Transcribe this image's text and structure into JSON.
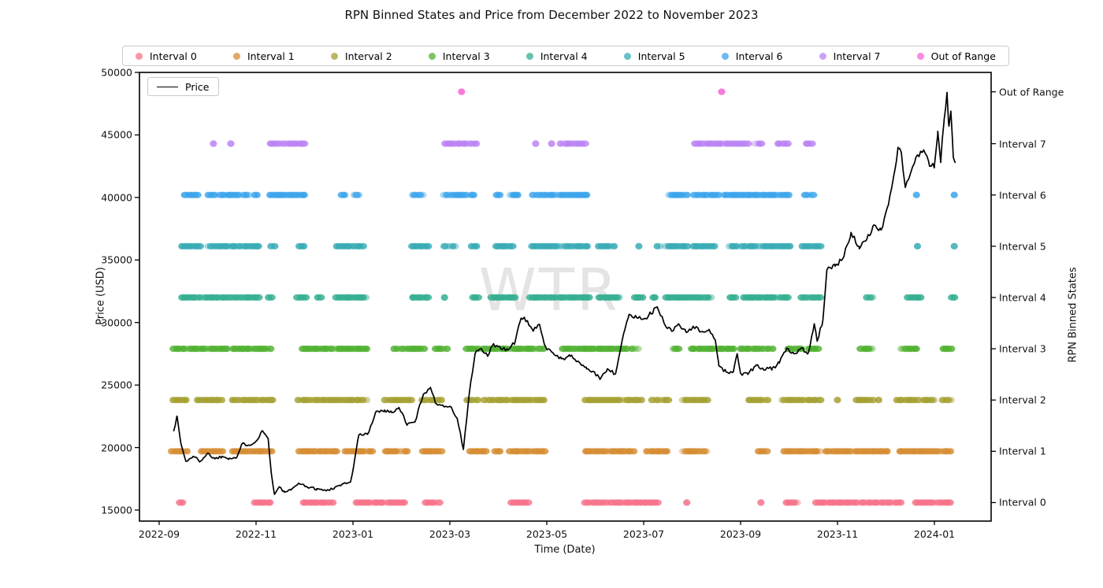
{
  "chart_data": {
    "type": "scatter",
    "title": "RPN Binned States and Price from December 2022 to November 2023",
    "xlabel": "Time (Date)",
    "ylabel_left": "Price (USD)",
    "ylabel_right": "RPN Binned States",
    "watermark": "WTR",
    "legend_position": "top",
    "grid": false,
    "x_unit": "months since 2022-09-01",
    "x_range": [
      -0.41,
      17.17
    ],
    "y_left_range": [
      14119,
      50000
    ],
    "x_ticks": [
      {
        "m": 0,
        "label": "2022-09"
      },
      {
        "m": 2,
        "label": "2022-11"
      },
      {
        "m": 4,
        "label": "2023-01"
      },
      {
        "m": 6,
        "label": "2023-03"
      },
      {
        "m": 8,
        "label": "2023-05"
      },
      {
        "m": 10,
        "label": "2023-07"
      },
      {
        "m": 12,
        "label": "2023-09"
      },
      {
        "m": 14,
        "label": "2023-11"
      },
      {
        "m": 16,
        "label": "2024-01"
      }
    ],
    "y_ticks": [
      {
        "value": 15000,
        "label": "15000"
      },
      {
        "value": 20000,
        "label": "20000"
      },
      {
        "value": 25000,
        "label": "25000"
      },
      {
        "value": 30000,
        "label": "30000"
      },
      {
        "value": 35000,
        "label": "35000"
      },
      {
        "value": 40000,
        "label": "40000"
      },
      {
        "value": 45000,
        "label": "45000"
      },
      {
        "value": 50000,
        "label": "50000"
      }
    ],
    "price_series": {
      "name": "Price",
      "color": "#000000",
      "jitter": 0.006,
      "points": [
        [
          0.3,
          21300
        ],
        [
          0.37,
          22500
        ],
        [
          0.45,
          20300
        ],
        [
          0.55,
          18900
        ],
        [
          0.7,
          19300
        ],
        [
          0.85,
          18900
        ],
        [
          1.0,
          19550
        ],
        [
          1.15,
          19100
        ],
        [
          1.3,
          19300
        ],
        [
          1.45,
          19150
        ],
        [
          1.6,
          19200
        ],
        [
          1.72,
          20350
        ],
        [
          1.85,
          20200
        ],
        [
          2.0,
          20500
        ],
        [
          2.13,
          21350
        ],
        [
          2.25,
          20700
        ],
        [
          2.32,
          17800
        ],
        [
          2.38,
          16250
        ],
        [
          2.48,
          16850
        ],
        [
          2.58,
          16450
        ],
        [
          2.72,
          16600
        ],
        [
          2.88,
          17150
        ],
        [
          3.05,
          16850
        ],
        [
          3.25,
          16700
        ],
        [
          3.45,
          16550
        ],
        [
          3.62,
          16800
        ],
        [
          3.8,
          17100
        ],
        [
          3.95,
          17250
        ],
        [
          4.03,
          18900
        ],
        [
          4.12,
          21000
        ],
        [
          4.3,
          21050
        ],
        [
          4.48,
          22900
        ],
        [
          4.65,
          23000
        ],
        [
          4.8,
          22800
        ],
        [
          4.95,
          23200
        ],
        [
          5.12,
          21850
        ],
        [
          5.28,
          22050
        ],
        [
          5.45,
          24250
        ],
        [
          5.6,
          24800
        ],
        [
          5.72,
          23500
        ],
        [
          5.85,
          23400
        ],
        [
          6.0,
          23300
        ],
        [
          6.15,
          22350
        ],
        [
          6.28,
          19850
        ],
        [
          6.4,
          24300
        ],
        [
          6.52,
          27500
        ],
        [
          6.65,
          27900
        ],
        [
          6.78,
          27300
        ],
        [
          6.9,
          28300
        ],
        [
          7.05,
          27900
        ],
        [
          7.2,
          27800
        ],
        [
          7.35,
          28500
        ],
        [
          7.47,
          30350
        ],
        [
          7.6,
          30150
        ],
        [
          7.72,
          29300
        ],
        [
          7.85,
          29850
        ],
        [
          7.97,
          28100
        ],
        [
          8.12,
          27600
        ],
        [
          8.3,
          27100
        ],
        [
          8.48,
          27300
        ],
        [
          8.65,
          26900
        ],
        [
          8.82,
          26300
        ],
        [
          8.95,
          26100
        ],
        [
          9.1,
          25450
        ],
        [
          9.25,
          26300
        ],
        [
          9.42,
          25900
        ],
        [
          9.55,
          28450
        ],
        [
          9.7,
          30650
        ],
        [
          9.85,
          30400
        ],
        [
          10.0,
          30300
        ],
        [
          10.15,
          30700
        ],
        [
          10.28,
          31250
        ],
        [
          10.42,
          29950
        ],
        [
          10.58,
          29300
        ],
        [
          10.72,
          29900
        ],
        [
          10.88,
          29200
        ],
        [
          11.02,
          29700
        ],
        [
          11.18,
          29250
        ],
        [
          11.35,
          29450
        ],
        [
          11.48,
          28600
        ],
        [
          11.55,
          26550
        ],
        [
          11.7,
          26050
        ],
        [
          11.85,
          26050
        ],
        [
          11.93,
          27500
        ],
        [
          12.0,
          25950
        ],
        [
          12.15,
          25850
        ],
        [
          12.32,
          26600
        ],
        [
          12.48,
          26200
        ],
        [
          12.65,
          26350
        ],
        [
          12.8,
          26750
        ],
        [
          12.95,
          27950
        ],
        [
          13.1,
          27500
        ],
        [
          13.25,
          27950
        ],
        [
          13.4,
          27600
        ],
        [
          13.52,
          29900
        ],
        [
          13.58,
          28500
        ],
        [
          13.7,
          30200
        ],
        [
          13.78,
          34200
        ],
        [
          13.95,
          34500
        ],
        [
          14.1,
          35050
        ],
        [
          14.28,
          37200
        ],
        [
          14.45,
          35900
        ],
        [
          14.6,
          36600
        ],
        [
          14.75,
          37800
        ],
        [
          14.9,
          37400
        ],
        [
          15.05,
          39400
        ],
        [
          15.15,
          41500
        ],
        [
          15.25,
          43900
        ],
        [
          15.32,
          43500
        ],
        [
          15.4,
          40800
        ],
        [
          15.52,
          42100
        ],
        [
          15.65,
          43400
        ],
        [
          15.78,
          43800
        ],
        [
          15.9,
          42500
        ],
        [
          16.0,
          42550
        ],
        [
          16.07,
          45300
        ],
        [
          16.13,
          42800
        ],
        [
          16.2,
          46200
        ],
        [
          16.26,
          48400
        ],
        [
          16.3,
          45700
        ],
        [
          16.34,
          46900
        ],
        [
          16.39,
          43200
        ],
        [
          16.44,
          42800
        ]
      ]
    },
    "states": [
      {
        "label": "Interval 0",
        "color": "#f77189",
        "y": 15600,
        "segments": [
          [
            0.42,
            0.52
          ],
          [
            1.97,
            2.33
          ],
          [
            2.98,
            3.6
          ],
          [
            4.07,
            5.09
          ],
          [
            5.5,
            5.8
          ],
          [
            7.28,
            7.64
          ],
          [
            8.8,
            10.3
          ],
          [
            12.94,
            13.19
          ],
          [
            13.55,
            14.55
          ],
          [
            14.64,
            15.35
          ],
          [
            15.61,
            16.35
          ]
        ],
        "singles": [
          10.89,
          12.42
        ]
      },
      {
        "label": "Interval 1",
        "color": "#d58c32",
        "y": 19700,
        "segments": [
          [
            0.26,
            0.6
          ],
          [
            0.86,
            1.32
          ],
          [
            1.51,
            2.36
          ],
          [
            2.89,
            3.71
          ],
          [
            3.84,
            4.39
          ],
          [
            4.68,
            5.17
          ],
          [
            5.44,
            5.85
          ],
          [
            6.42,
            6.8
          ],
          [
            6.93,
            7.09
          ],
          [
            7.25,
            7.66
          ],
          [
            7.74,
            7.99
          ],
          [
            8.8,
            9.83
          ],
          [
            10.05,
            10.5
          ],
          [
            10.81,
            11.32
          ],
          [
            12.37,
            12.57
          ],
          [
            12.89,
            13.33
          ],
          [
            13.41,
            13.63
          ],
          [
            13.77,
            15.06
          ],
          [
            15.28,
            16.36
          ]
        ],
        "singles": []
      },
      {
        "label": "Interval 2",
        "color": "#a4a031",
        "y": 23800,
        "segments": [
          [
            0.29,
            0.59
          ],
          [
            0.78,
            1.3
          ],
          [
            1.51,
            2.36
          ],
          [
            2.86,
            4.31
          ],
          [
            4.65,
            5.25
          ],
          [
            5.44,
            5.87
          ],
          [
            6.36,
            6.63
          ],
          [
            6.71,
            7.23
          ],
          [
            7.28,
            7.99
          ],
          [
            8.8,
            9.97
          ],
          [
            10.18,
            10.54
          ],
          [
            10.81,
            11.35
          ],
          [
            12.16,
            12.57
          ],
          [
            12.85,
            13.3
          ],
          [
            13.38,
            13.66
          ],
          [
            14.39,
            14.76
          ],
          [
            15.22,
            15.71
          ],
          [
            15.77,
            16.02
          ],
          [
            16.18,
            16.36
          ]
        ],
        "singles": [
          14.0,
          14.85
        ]
      },
      {
        "label": "Interval 3",
        "color": "#50b131",
        "y": 27900,
        "segments": [
          [
            0.31,
            1.41
          ],
          [
            1.53,
            2.34
          ],
          [
            2.96,
            3.58
          ],
          [
            3.63,
            4.33
          ],
          [
            4.85,
            5.5
          ],
          [
            5.71,
            5.95
          ],
          [
            6.36,
            6.63
          ],
          [
            6.68,
            7.23
          ],
          [
            7.28,
            7.99
          ],
          [
            8.34,
            8.67
          ],
          [
            8.72,
            9.67
          ],
          [
            9.76,
            9.92
          ],
          [
            10.59,
            10.7
          ],
          [
            10.99,
            11.89
          ],
          [
            12.0,
            12.68
          ],
          [
            12.98,
            13.3
          ],
          [
            13.38,
            13.63
          ],
          [
            14.49,
            14.73
          ],
          [
            15.3,
            15.66
          ],
          [
            16.18,
            16.39
          ]
        ],
        "singles": []
      },
      {
        "label": "Interval 4",
        "color": "#34ae91",
        "y": 32000,
        "segments": [
          [
            0.46,
            2.06
          ],
          [
            2.26,
            2.35
          ],
          [
            2.86,
            3.04
          ],
          [
            3.28,
            3.36
          ],
          [
            3.66,
            4.27
          ],
          [
            5.22,
            5.6
          ],
          [
            6.47,
            6.59
          ],
          [
            6.85,
            7.37
          ],
          [
            7.66,
            8.89
          ],
          [
            9.07,
            9.51
          ],
          [
            9.81,
            9.99
          ],
          [
            10.19,
            10.28
          ],
          [
            10.46,
            11.43
          ],
          [
            11.79,
            11.93
          ],
          [
            12.05,
            13.02
          ],
          [
            13.26,
            13.67
          ],
          [
            14.61,
            14.76
          ],
          [
            15.44,
            15.74
          ],
          [
            16.35,
            16.44
          ]
        ],
        "singles": [
          5.89
        ]
      },
      {
        "label": "Interval 5",
        "color": "#37abb5",
        "y": 36100,
        "segments": [
          [
            0.46,
            0.89
          ],
          [
            1.01,
            2.06
          ],
          [
            2.32,
            2.41
          ],
          [
            2.89,
            3.02
          ],
          [
            3.66,
            4.21
          ],
          [
            5.22,
            5.6
          ],
          [
            5.89,
            6.15
          ],
          [
            6.44,
            6.59
          ],
          [
            6.96,
            7.34
          ],
          [
            7.69,
            8.89
          ],
          [
            9.07,
            9.42
          ],
          [
            10.28,
            10.35
          ],
          [
            10.46,
            10.93
          ],
          [
            11.02,
            11.46
          ],
          [
            11.76,
            11.93
          ],
          [
            12.02,
            13.02
          ],
          [
            13.26,
            13.67
          ]
        ],
        "singles": [
          9.9,
          15.65,
          16.41
        ]
      },
      {
        "label": "Interval 6",
        "color": "#3ba3ec",
        "y": 40200,
        "segments": [
          [
            0.52,
            0.81
          ],
          [
            1.01,
            1.22
          ],
          [
            1.27,
            1.67
          ],
          [
            1.74,
            1.85
          ],
          [
            1.97,
            2.06
          ],
          [
            2.29,
            3.02
          ],
          [
            3.77,
            3.85
          ],
          [
            4.03,
            4.18
          ],
          [
            5.22,
            5.46
          ],
          [
            5.89,
            6.33
          ],
          [
            6.44,
            6.53
          ],
          [
            6.96,
            7.05
          ],
          [
            7.25,
            7.43
          ],
          [
            7.72,
            7.95
          ],
          [
            8.01,
            8.86
          ],
          [
            10.52,
            10.93
          ],
          [
            11.05,
            11.58
          ],
          [
            11.67,
            13.02
          ],
          [
            13.32,
            13.5
          ]
        ],
        "singles": [
          15.63,
          16.41
        ]
      },
      {
        "label": "Interval 7",
        "color": "#bb83f4",
        "y": 44300,
        "segments": [
          [
            2.29,
            3.02
          ],
          [
            5.89,
            6.55
          ],
          [
            8.29,
            8.83
          ],
          [
            11.05,
            12.17
          ],
          [
            12.32,
            12.43
          ],
          [
            12.76,
            12.99
          ],
          [
            13.35,
            13.47
          ]
        ],
        "singles": [
          1.12,
          1.48,
          7.77,
          8.1
        ]
      },
      {
        "label": "Out of Range",
        "color": "#f564d4",
        "y": 48450,
        "segments": [],
        "singles": [
          6.24,
          11.61
        ]
      }
    ]
  }
}
